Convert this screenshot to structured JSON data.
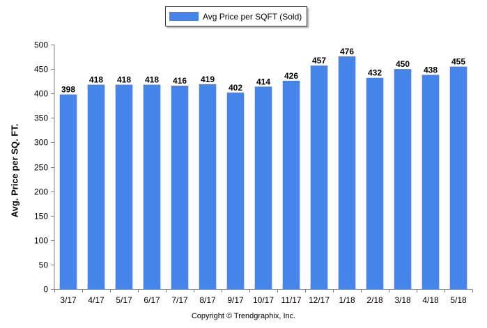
{
  "legend": {
    "label": "Avg Price per SQFT (Sold)",
    "color": "#4584e8"
  },
  "copyright": "Copyright © Trendgraphix, Inc.",
  "chart_data": {
    "type": "bar",
    "title": "",
    "xlabel": "",
    "ylabel": "Avg. Price per SQ. FT.",
    "ylim": [
      0,
      500
    ],
    "yticks": [
      0,
      50,
      100,
      150,
      200,
      250,
      300,
      350,
      400,
      450,
      500
    ],
    "grid": false,
    "legend_position": "top-center",
    "categories": [
      "3/17",
      "4/17",
      "5/17",
      "6/17",
      "7/17",
      "8/17",
      "9/17",
      "10/17",
      "11/17",
      "12/17",
      "1/18",
      "2/18",
      "3/18",
      "4/18",
      "5/18"
    ],
    "series": [
      {
        "name": "Avg Price per SQFT (Sold)",
        "color": "#4584e8",
        "values": [
          398,
          418,
          418,
          418,
          416,
          419,
          402,
          414,
          426,
          457,
          476,
          432,
          450,
          438,
          455
        ]
      }
    ]
  }
}
